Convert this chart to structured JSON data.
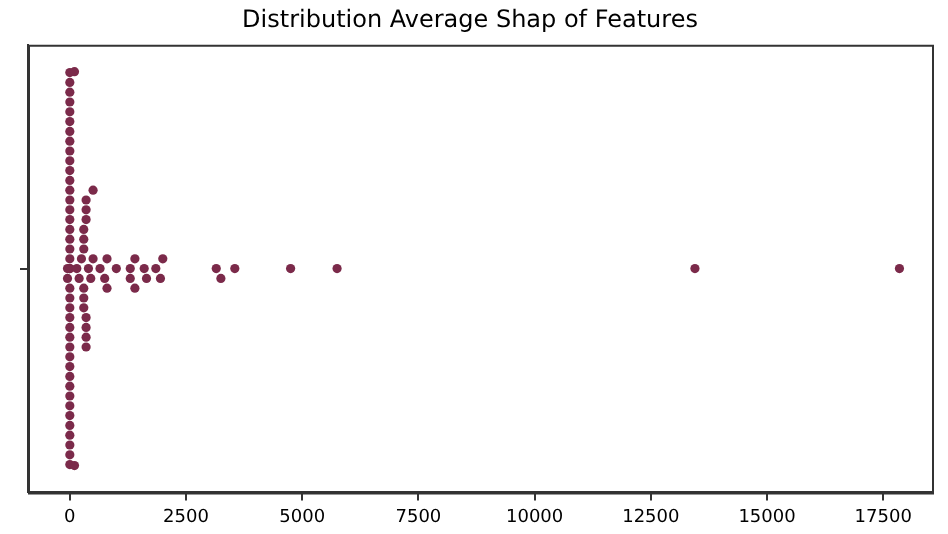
{
  "chart_data": {
    "type": "scatter",
    "title": "Distribution Average Shap of Features",
    "orientation": "horizontal",
    "categories": [
      null
    ],
    "series": [
      {
        "color": "#7b2a4a",
        "x": [
          null,
          null,
          null,
          null,
          null,
          null,
          null,
          null,
          null,
          null,
          null,
          null,
          null,
          null,
          null,
          null,
          null,
          null,
          null,
          null,
          null,
          null,
          null,
          null,
          null,
          null,
          null,
          null,
          null,
          null,
          null,
          null,
          null,
          null,
          null,
          null,
          null,
          null,
          null,
          null,
          null,
          null,
          null,
          null,
          null,
          null,
          null,
          null,
          null,
          null,
          null,
          null,
          null,
          null,
          null,
          null,
          null,
          null,
          null,
          null,
          null,
          null,
          null,
          null,
          null,
          null,
          null,
          null,
          null,
          null,
          null,
          null,
          null,
          null,
          null,
          null,
          null,
          null,
          null,
          null,
          null,
          null,
          null,
          null,
          null,
          null
        ],
        "values": [
          0,
          0,
          0,
          0,
          0,
          0,
          0,
          0,
          0,
          0,
          0,
          0,
          0,
          0,
          0,
          0,
          0,
          0,
          0,
          0,
          0,
          0,
          0,
          0,
          0,
          0,
          0,
          0,
          0,
          0,
          0,
          0,
          0,
          0,
          0,
          0,
          0,
          0,
          0,
          0,
          0,
          -50,
          -50,
          100,
          100,
          300,
          300,
          300,
          300,
          300,
          300,
          350,
          350,
          350,
          350,
          350,
          350,
          350,
          500,
          800,
          1400,
          400,
          800,
          1300,
          1850,
          250,
          650,
          1000,
          1300,
          1650,
          2000,
          3150,
          3550,
          4750,
          5750,
          13450,
          17850,
          450,
          750,
          1400,
          1600,
          1950,
          3250,
          500,
          200,
          150
        ]
      }
    ],
    "marker": "circle",
    "xlim": [
      -900,
      18550
    ],
    "xticks": [
      0,
      2500,
      5000,
      7500,
      10000,
      12500,
      15000,
      17500
    ],
    "grid": false,
    "legend": false
  }
}
